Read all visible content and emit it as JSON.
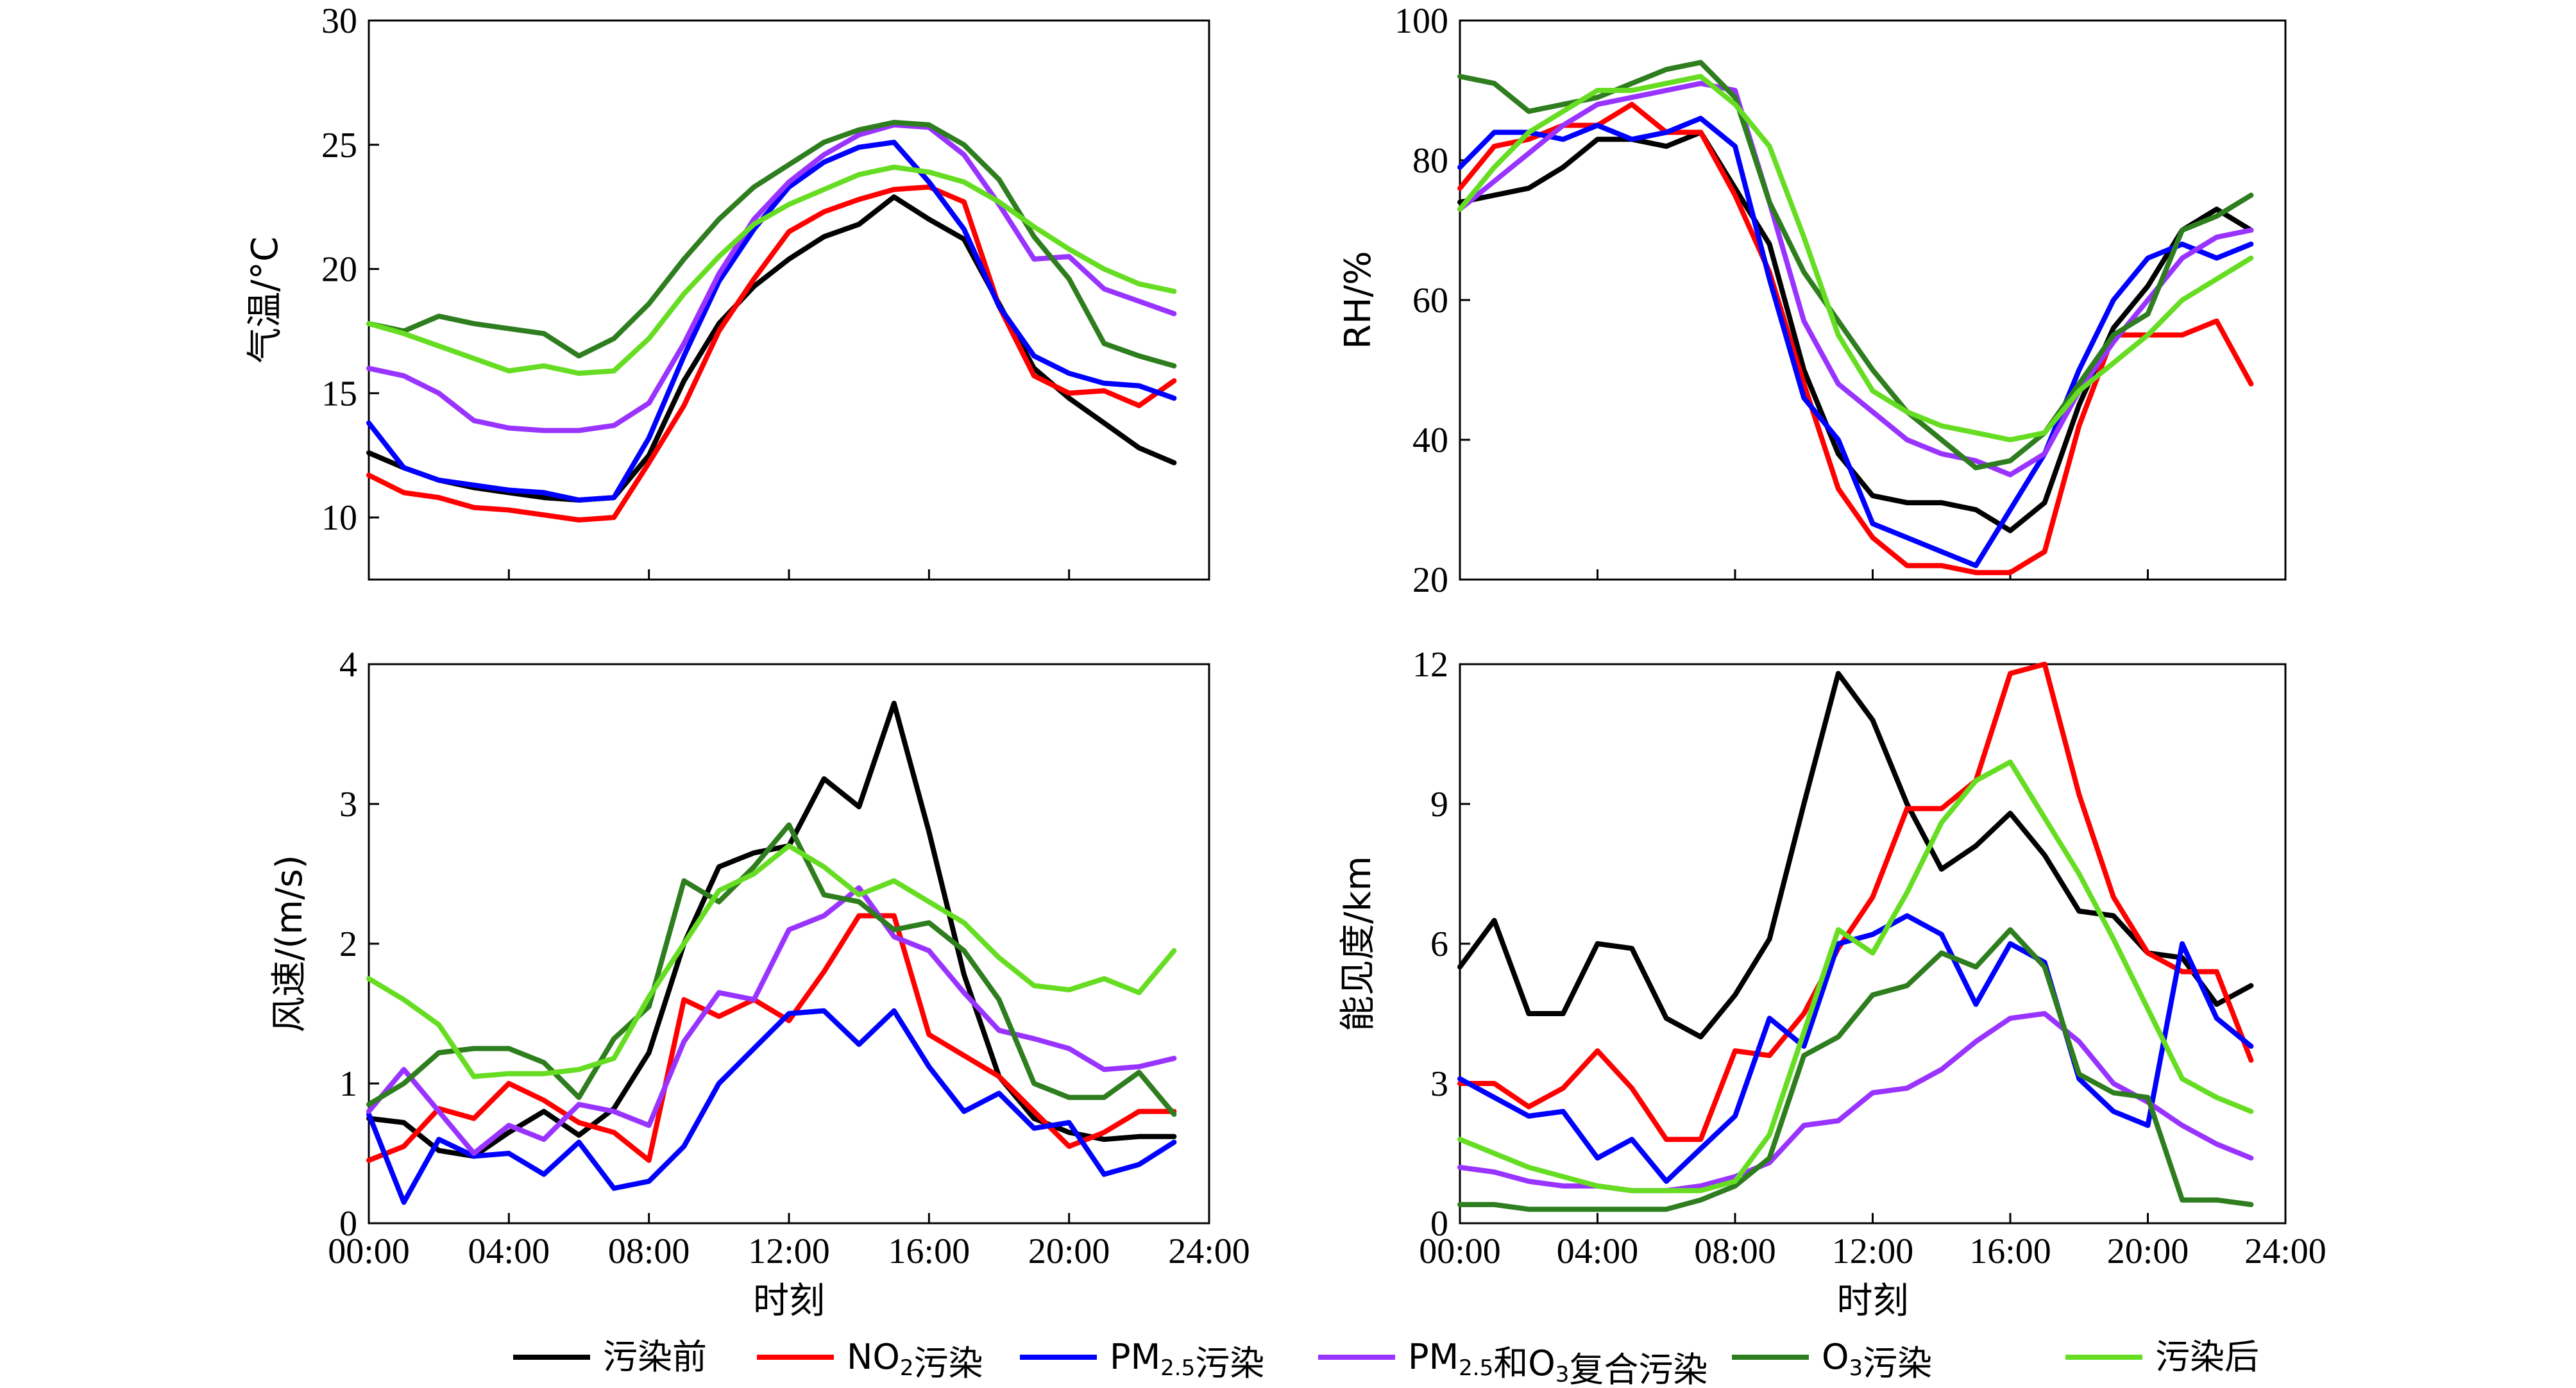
{
  "series_styles": [
    {
      "label": "污染前",
      "color": "#000000"
    },
    {
      "label": "NO2污染",
      "color": "#ff0000"
    },
    {
      "label": "PM2.5污染",
      "color": "#0000ff"
    },
    {
      "label": "PM2.5和O3复合污染",
      "color": "#9933ff"
    },
    {
      "label": "O3污染",
      "color": "#2e7d1e"
    },
    {
      "label": "污染后",
      "color": "#66dd22"
    }
  ],
  "legend": {
    "items": [
      {
        "text": "污染前"
      },
      {
        "pre": "NO",
        "sub": "2",
        "post": "污染"
      },
      {
        "pre": "PM",
        "sub": "2.5",
        "post": "污染"
      },
      {
        "pre": "PM",
        "sub": "2.5",
        "mid": "和O",
        "sub2": "3",
        "post": "复合污染"
      },
      {
        "pre": "O",
        "sub": "3",
        "post": "污染"
      },
      {
        "text": "污染后"
      }
    ]
  },
  "chart_data": [
    {
      "type": "line",
      "ylabel": "气温/°C",
      "xlabel": "",
      "xlim": [
        0,
        24
      ],
      "ylim": [
        7.5,
        30
      ],
      "xticks": [
        "00:00",
        "04:00",
        "08:00",
        "12:00",
        "16:00",
        "20:00",
        "24:00"
      ],
      "yticks": [
        10,
        15,
        20,
        25,
        30
      ],
      "show_xtick_labels": false,
      "x": [
        0,
        1,
        2,
        3,
        4,
        5,
        6,
        7,
        8,
        9,
        10,
        11,
        12,
        13,
        14,
        15,
        16,
        17,
        18,
        19,
        20,
        21,
        22,
        23
      ],
      "series": [
        {
          "name": "污染前",
          "values": [
            12.6,
            12.0,
            11.5,
            11.2,
            11.0,
            10.8,
            10.7,
            10.8,
            12.5,
            15.5,
            17.8,
            19.3,
            20.4,
            21.3,
            21.8,
            22.9,
            22.0,
            21.2,
            18.6,
            16.0,
            14.8,
            13.8,
            12.8,
            12.2
          ]
        },
        {
          "name": "NO2污染",
          "values": [
            11.7,
            11.0,
            10.8,
            10.4,
            10.3,
            10.1,
            9.9,
            10.0,
            12.2,
            14.5,
            17.5,
            19.6,
            21.5,
            22.3,
            22.8,
            23.2,
            23.3,
            22.7,
            18.5,
            15.7,
            15.0,
            15.1,
            14.5,
            15.5
          ]
        },
        {
          "name": "PM2.5污染",
          "values": [
            13.8,
            12.0,
            11.5,
            11.3,
            11.1,
            11.0,
            10.7,
            10.8,
            13.2,
            16.5,
            19.5,
            21.6,
            23.3,
            24.3,
            24.9,
            25.1,
            23.5,
            21.6,
            18.5,
            16.5,
            15.8,
            15.4,
            15.3,
            14.8
          ]
        },
        {
          "name": "PM2.5和O3复合污染",
          "values": [
            16.0,
            15.7,
            15.0,
            13.9,
            13.6,
            13.5,
            13.5,
            13.7,
            14.6,
            17.0,
            19.8,
            22.0,
            23.5,
            24.6,
            25.4,
            25.8,
            25.7,
            24.6,
            22.6,
            20.4,
            20.5,
            19.2,
            18.7,
            18.2
          ]
        },
        {
          "name": "O3污染",
          "values": [
            17.8,
            17.5,
            18.1,
            17.8,
            17.6,
            17.4,
            16.5,
            17.2,
            18.6,
            20.4,
            22.0,
            23.3,
            24.2,
            25.1,
            25.6,
            25.9,
            25.8,
            25.0,
            23.6,
            21.3,
            19.6,
            17.0,
            16.5,
            16.1
          ]
        },
        {
          "name": "污染后",
          "values": [
            17.8,
            17.4,
            16.9,
            16.4,
            15.9,
            16.1,
            15.8,
            15.9,
            17.2,
            19.0,
            20.5,
            21.8,
            22.6,
            23.2,
            23.8,
            24.1,
            23.9,
            23.5,
            22.7,
            21.7,
            20.8,
            20.0,
            19.4,
            19.1
          ]
        }
      ]
    },
    {
      "type": "line",
      "ylabel": "RH/%",
      "xlabel": "",
      "xlim": [
        0,
        24
      ],
      "ylim": [
        20,
        100
      ],
      "xticks": [
        "00:00",
        "04:00",
        "08:00",
        "12:00",
        "16:00",
        "20:00",
        "24:00"
      ],
      "yticks": [
        20,
        40,
        60,
        80,
        100
      ],
      "show_xtick_labels": false,
      "x": [
        0,
        1,
        2,
        3,
        4,
        5,
        6,
        7,
        8,
        9,
        10,
        11,
        12,
        13,
        14,
        15,
        16,
        17,
        18,
        19,
        20,
        21,
        22,
        23
      ],
      "series": [
        {
          "name": "污染前",
          "values": [
            74,
            75,
            76,
            79,
            83,
            83,
            82,
            84,
            76,
            68,
            50,
            38,
            32,
            31,
            31,
            30,
            27,
            31,
            45,
            56,
            62,
            70,
            73,
            70
          ]
        },
        {
          "name": "NO2污染",
          "values": [
            76,
            82,
            83,
            85,
            85,
            88,
            84,
            84,
            75,
            64,
            48,
            33,
            26,
            22,
            22,
            21,
            21,
            24,
            42,
            55,
            55,
            55,
            57,
            48
          ]
        },
        {
          "name": "PM2.5污染",
          "values": [
            79,
            84,
            84,
            83,
            85,
            83,
            84,
            86,
            82,
            63,
            46,
            40,
            28,
            26,
            24,
            22,
            30,
            38,
            50,
            60,
            66,
            68,
            66,
            68
          ]
        },
        {
          "name": "PM2.5和O3复合污染",
          "values": [
            73,
            77,
            81,
            85,
            88,
            89,
            90,
            91,
            90,
            74,
            57,
            48,
            44,
            40,
            38,
            37,
            35,
            38,
            47,
            54,
            60,
            66,
            69,
            70
          ]
        },
        {
          "name": "O3污染",
          "values": [
            92,
            91,
            87,
            88,
            89,
            91,
            93,
            94,
            89,
            74,
            64,
            57,
            50,
            44,
            40,
            36,
            37,
            41,
            48,
            55,
            58,
            70,
            72,
            75
          ]
        },
        {
          "name": "污染后",
          "values": [
            73,
            79,
            84,
            87,
            90,
            90,
            91,
            92,
            88,
            82,
            69,
            55,
            47,
            44,
            42,
            41,
            40,
            41,
            47,
            51,
            55,
            60,
            63,
            66
          ]
        }
      ]
    },
    {
      "type": "line",
      "ylabel": "风速/(m/s)",
      "xlabel": "时刻",
      "xlim": [
        0,
        24
      ],
      "ylim": [
        0,
        4
      ],
      "xticks": [
        "00:00",
        "04:00",
        "08:00",
        "12:00",
        "16:00",
        "20:00",
        "24:00"
      ],
      "yticks": [
        0,
        1,
        2,
        3,
        4
      ],
      "show_xtick_labels": true,
      "x": [
        0,
        1,
        2,
        3,
        4,
        5,
        6,
        7,
        8,
        9,
        10,
        11,
        12,
        13,
        14,
        15,
        16,
        17,
        18,
        19,
        20,
        21,
        22,
        23
      ],
      "series": [
        {
          "name": "污染前",
          "values": [
            0.75,
            0.72,
            0.52,
            0.48,
            0.65,
            0.8,
            0.63,
            0.82,
            1.22,
            2.0,
            2.55,
            2.65,
            2.7,
            3.18,
            2.98,
            3.72,
            2.8,
            1.78,
            1.05,
            0.75,
            0.65,
            0.6,
            0.62,
            0.62
          ]
        },
        {
          "name": "NO2污染",
          "values": [
            0.45,
            0.55,
            0.82,
            0.75,
            1.0,
            0.88,
            0.72,
            0.65,
            0.45,
            1.6,
            1.48,
            1.6,
            1.45,
            1.8,
            2.2,
            2.2,
            1.35,
            1.2,
            1.05,
            0.8,
            0.55,
            0.65,
            0.8,
            0.8
          ]
        },
        {
          "name": "PM2.5污染",
          "values": [
            0.78,
            0.15,
            0.6,
            0.48,
            0.5,
            0.35,
            0.58,
            0.25,
            0.3,
            0.55,
            1.0,
            1.25,
            1.5,
            1.52,
            1.28,
            1.52,
            1.12,
            0.8,
            0.93,
            0.68,
            0.72,
            0.35,
            0.42,
            0.58
          ]
        },
        {
          "name": "PM2.5和O3复合污染",
          "values": [
            0.8,
            1.1,
            0.8,
            0.5,
            0.7,
            0.6,
            0.85,
            0.8,
            0.7,
            1.3,
            1.65,
            1.6,
            2.1,
            2.2,
            2.4,
            2.05,
            1.95,
            1.65,
            1.38,
            1.32,
            1.25,
            1.1,
            1.12,
            1.18
          ]
        },
        {
          "name": "O3污染",
          "values": [
            0.85,
            1.0,
            1.22,
            1.25,
            1.25,
            1.15,
            0.9,
            1.32,
            1.55,
            2.45,
            2.3,
            2.55,
            2.85,
            2.35,
            2.3,
            2.1,
            2.15,
            1.95,
            1.6,
            1.0,
            0.9,
            0.9,
            1.08,
            0.78
          ]
        },
        {
          "name": "污染后",
          "values": [
            1.75,
            1.6,
            1.42,
            1.05,
            1.07,
            1.07,
            1.1,
            1.18,
            1.62,
            2.0,
            2.38,
            2.5,
            2.7,
            2.55,
            2.35,
            2.45,
            2.3,
            2.15,
            1.9,
            1.7,
            1.67,
            1.75,
            1.65,
            1.95
          ]
        }
      ]
    },
    {
      "type": "line",
      "ylabel": "能见度/km",
      "xlabel": "时刻",
      "xlim": [
        0,
        24
      ],
      "ylim": [
        0,
        12
      ],
      "xticks": [
        "00:00",
        "04:00",
        "08:00",
        "12:00",
        "16:00",
        "20:00",
        "24:00"
      ],
      "yticks": [
        0,
        3,
        6,
        9,
        12
      ],
      "show_xtick_labels": true,
      "x": [
        0,
        1,
        2,
        3,
        4,
        5,
        6,
        7,
        8,
        9,
        10,
        11,
        12,
        13,
        14,
        15,
        16,
        17,
        18,
        19,
        20,
        21,
        22,
        23
      ],
      "series": [
        {
          "name": "污染前",
          "values": [
            5.5,
            6.5,
            4.5,
            4.5,
            6.0,
            5.9,
            4.4,
            4.0,
            4.9,
            6.1,
            9.0,
            11.8,
            10.8,
            9.0,
            7.6,
            8.1,
            8.8,
            7.9,
            6.7,
            6.6,
            5.8,
            5.7,
            4.7,
            5.1
          ]
        },
        {
          "name": "NO2污染",
          "values": [
            3.0,
            3.0,
            2.5,
            2.9,
            3.7,
            2.9,
            1.8,
            1.8,
            3.7,
            3.6,
            4.5,
            5.9,
            7.0,
            8.9,
            8.9,
            9.5,
            11.8,
            12.0,
            9.2,
            7.0,
            5.8,
            5.4,
            5.4,
            3.5
          ]
        },
        {
          "name": "PM2.5污染",
          "values": [
            3.1,
            2.7,
            2.3,
            2.4,
            1.4,
            1.8,
            0.9,
            1.6,
            2.3,
            4.4,
            3.8,
            6.0,
            6.2,
            6.6,
            6.2,
            4.7,
            6.0,
            5.6,
            3.1,
            2.4,
            2.1,
            6.0,
            4.4,
            3.8
          ]
        },
        {
          "name": "PM2.5和O3复合污染",
          "values": [
            1.2,
            1.1,
            0.9,
            0.8,
            0.8,
            0.7,
            0.7,
            0.8,
            1.0,
            1.3,
            2.1,
            2.2,
            2.8,
            2.9,
            3.3,
            3.9,
            4.4,
            4.5,
            3.9,
            3.0,
            2.6,
            2.1,
            1.7,
            1.4
          ]
        },
        {
          "name": "O3污染",
          "values": [
            0.4,
            0.4,
            0.3,
            0.3,
            0.3,
            0.3,
            0.3,
            0.5,
            0.8,
            1.4,
            3.6,
            4.0,
            4.9,
            5.1,
            5.8,
            5.5,
            6.3,
            5.5,
            3.2,
            2.8,
            2.7,
            0.5,
            0.5,
            0.4
          ]
        },
        {
          "name": "污染后",
          "values": [
            1.8,
            1.5,
            1.2,
            1.0,
            0.8,
            0.7,
            0.7,
            0.7,
            0.9,
            1.9,
            4.1,
            6.3,
            5.8,
            7.1,
            8.6,
            9.5,
            9.9,
            8.7,
            7.5,
            6.1,
            4.6,
            3.1,
            2.7,
            2.4
          ]
        }
      ]
    }
  ]
}
